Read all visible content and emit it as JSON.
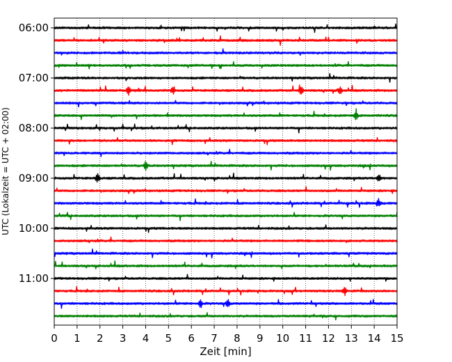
{
  "chart_data": {
    "type": "line",
    "title": "",
    "xlabel": "Zeit  [min]",
    "ylabel": "UTC (Lokalzeit = UTC + 02:00)",
    "xlim": [
      0,
      15
    ],
    "x_ticks": [
      0,
      1,
      2,
      3,
      4,
      5,
      6,
      7,
      8,
      9,
      10,
      11,
      12,
      13,
      14,
      15
    ],
    "y_tick_labels": [
      "06:00",
      "07:00",
      "08:00",
      "09:00",
      "10:00",
      "11:00"
    ],
    "grid": "vertical dotted at each minute",
    "line_duration_min": 15,
    "series": [
      {
        "start": "06:00",
        "color": "#000000"
      },
      {
        "start": "06:15",
        "color": "#ff0000"
      },
      {
        "start": "06:30",
        "color": "#0000ff"
      },
      {
        "start": "06:45",
        "color": "#008000"
      },
      {
        "start": "07:00",
        "color": "#000000"
      },
      {
        "start": "07:15",
        "color": "#ff0000"
      },
      {
        "start": "07:30",
        "color": "#0000ff"
      },
      {
        "start": "07:45",
        "color": "#008000"
      },
      {
        "start": "08:00",
        "color": "#000000"
      },
      {
        "start": "08:15",
        "color": "#ff0000"
      },
      {
        "start": "08:30",
        "color": "#0000ff"
      },
      {
        "start": "08:45",
        "color": "#008000"
      },
      {
        "start": "09:00",
        "color": "#000000"
      },
      {
        "start": "09:15",
        "color": "#ff0000"
      },
      {
        "start": "09:30",
        "color": "#0000ff"
      },
      {
        "start": "09:45",
        "color": "#008000"
      },
      {
        "start": "10:00",
        "color": "#000000"
      },
      {
        "start": "10:15",
        "color": "#ff0000"
      },
      {
        "start": "10:30",
        "color": "#0000ff"
      },
      {
        "start": "10:45",
        "color": "#008000"
      },
      {
        "start": "11:00",
        "color": "#000000"
      },
      {
        "start": "11:15",
        "color": "#ff0000"
      },
      {
        "start": "11:30",
        "color": "#0000ff"
      },
      {
        "start": "11:45",
        "color": "#008000"
      }
    ],
    "events": [
      {
        "line": "07:15",
        "x": 3.25
      },
      {
        "line": "07:15",
        "x": 5.2
      },
      {
        "line": "07:15",
        "x": 10.8
      },
      {
        "line": "07:15",
        "x": 12.5
      },
      {
        "line": "07:45",
        "x": 13.2
      },
      {
        "line": "08:45",
        "x": 4.0
      },
      {
        "line": "09:00",
        "x": 1.9
      },
      {
        "line": "09:00",
        "x": 14.2
      },
      {
        "line": "09:30",
        "x": 14.2
      },
      {
        "line": "11:15",
        "x": 12.7
      },
      {
        "line": "11:30",
        "x": 6.4
      },
      {
        "line": "11:30",
        "x": 7.6
      }
    ]
  }
}
